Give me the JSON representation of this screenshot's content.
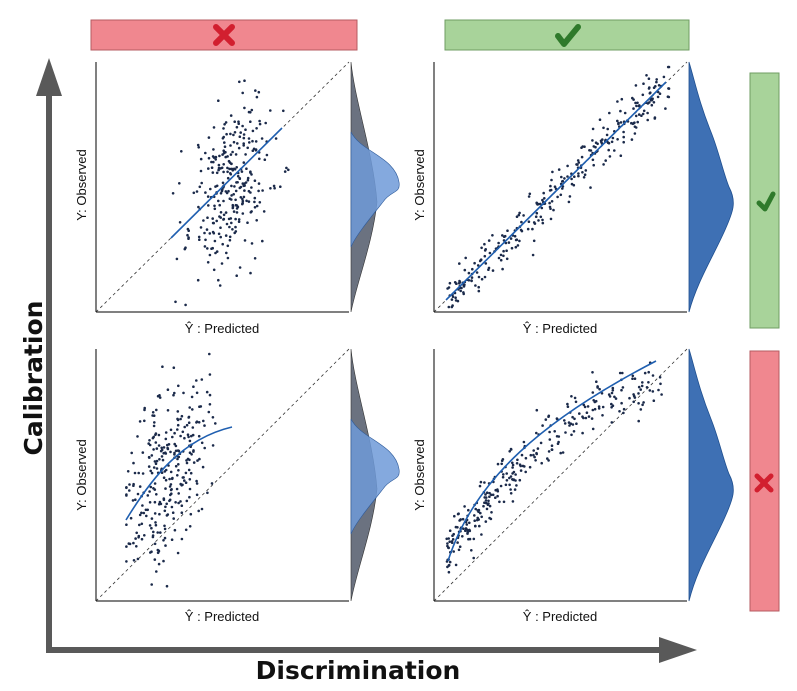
{
  "axes": {
    "x_title": "Discrimination",
    "y_title": "Calibration"
  },
  "colors": {
    "bad_fill": "#f0878f",
    "bad_stroke": "#b65b62",
    "good_fill": "#a8d39a",
    "good_stroke": "#6f9e63",
    "cross": "#d21f2f",
    "check": "#2f7a2b",
    "points": "#1b2a4a",
    "fit": "#1f5fb0",
    "arrow": "#595959",
    "density_gray": "#6b7280",
    "density_blue": "#3e70b4",
    "density_light": "#6f9ad8"
  },
  "indicators": {
    "top_left": "cross",
    "top_right": "check",
    "right_top": "check",
    "right_bottom": "cross"
  },
  "panels": [
    {
      "id": "top-left",
      "y_label": "Y: Observed",
      "x_label": "Ŷ : Predicted"
    },
    {
      "id": "top-right",
      "y_label": "Y: Observed",
      "x_label": "Ŷ : Predicted"
    },
    {
      "id": "bottom-left",
      "y_label": "Y: Observed",
      "x_label": "Ŷ : Predicted"
    },
    {
      "id": "bottom-right",
      "y_label": "Y: Observed",
      "x_label": "Ŷ : Predicted"
    }
  ]
}
